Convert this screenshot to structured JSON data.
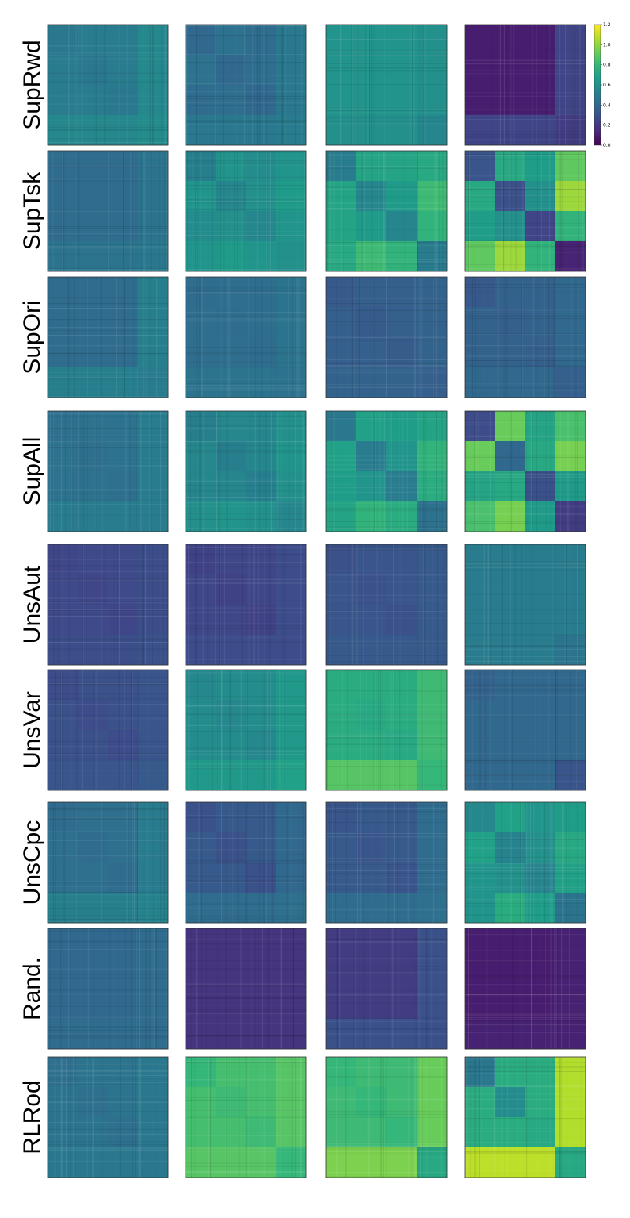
{
  "chart_data": {
    "type": "heatmap",
    "description_free": true,
    "rows": [
      "SupRwd",
      "SupTsk",
      "SupOri",
      "SupAll",
      "UnsAut",
      "UnsVar",
      "UnsCpc",
      "Rand.",
      "RLRod"
    ],
    "n_columns": 4,
    "block_count": 4,
    "colormap_stops": [
      "#440154",
      "#482878",
      "#3e4989",
      "#31688e",
      "#26828e",
      "#1f9e89",
      "#35b779",
      "#6ece58",
      "#b5de2b",
      "#fde725"
    ],
    "colorbar": {
      "vmin": 0.0,
      "vmax": 1.2,
      "ticks": [
        "0.0",
        "0.2",
        "0.4",
        "0.6",
        "0.8",
        "1.0",
        "1.2"
      ]
    },
    "matrices": [
      [
        [
          [
            0.48,
            0.5,
            0.5,
            0.56
          ],
          [
            0.5,
            0.48,
            0.5,
            0.56
          ],
          [
            0.5,
            0.5,
            0.48,
            0.56
          ],
          [
            0.56,
            0.56,
            0.56,
            0.58
          ]
        ],
        [
          [
            0.4,
            0.45,
            0.42,
            0.48
          ],
          [
            0.45,
            0.4,
            0.43,
            0.48
          ],
          [
            0.42,
            0.43,
            0.4,
            0.48
          ],
          [
            0.48,
            0.48,
            0.48,
            0.5
          ]
        ],
        [
          [
            0.62,
            0.62,
            0.62,
            0.6
          ],
          [
            0.62,
            0.62,
            0.62,
            0.6
          ],
          [
            0.62,
            0.62,
            0.62,
            0.6
          ],
          [
            0.6,
            0.6,
            0.6,
            0.55
          ]
        ],
        [
          [
            0.1,
            0.1,
            0.1,
            0.25
          ],
          [
            0.1,
            0.1,
            0.1,
            0.25
          ],
          [
            0.1,
            0.1,
            0.1,
            0.25
          ],
          [
            0.25,
            0.25,
            0.25,
            0.22
          ]
        ]
      ],
      [
        [
          [
            0.42,
            0.42,
            0.42,
            0.46
          ],
          [
            0.42,
            0.42,
            0.42,
            0.46
          ],
          [
            0.42,
            0.42,
            0.42,
            0.46
          ],
          [
            0.46,
            0.46,
            0.46,
            0.48
          ]
        ],
        [
          [
            0.52,
            0.62,
            0.58,
            0.62
          ],
          [
            0.62,
            0.55,
            0.6,
            0.65
          ],
          [
            0.58,
            0.6,
            0.55,
            0.62
          ],
          [
            0.62,
            0.65,
            0.62,
            0.6
          ]
        ],
        [
          [
            0.5,
            0.7,
            0.7,
            0.72
          ],
          [
            0.7,
            0.55,
            0.65,
            0.82
          ],
          [
            0.7,
            0.65,
            0.55,
            0.78
          ],
          [
            0.72,
            0.82,
            0.78,
            0.5
          ]
        ],
        [
          [
            0.32,
            0.72,
            0.66,
            0.9
          ],
          [
            0.72,
            0.3,
            0.6,
            1.02
          ],
          [
            0.66,
            0.6,
            0.25,
            0.78
          ],
          [
            0.9,
            1.02,
            0.78,
            0.12
          ]
        ]
      ],
      [
        [
          [
            0.42,
            0.42,
            0.42,
            0.52
          ],
          [
            0.42,
            0.42,
            0.42,
            0.52
          ],
          [
            0.42,
            0.42,
            0.42,
            0.52
          ],
          [
            0.52,
            0.52,
            0.52,
            0.5
          ]
        ],
        [
          [
            0.42,
            0.43,
            0.43,
            0.46
          ],
          [
            0.43,
            0.42,
            0.43,
            0.46
          ],
          [
            0.43,
            0.43,
            0.42,
            0.46
          ],
          [
            0.46,
            0.46,
            0.46,
            0.45
          ]
        ],
        [
          [
            0.34,
            0.36,
            0.36,
            0.38
          ],
          [
            0.36,
            0.35,
            0.36,
            0.38
          ],
          [
            0.36,
            0.36,
            0.35,
            0.38
          ],
          [
            0.38,
            0.38,
            0.38,
            0.36
          ]
        ],
        [
          [
            0.34,
            0.38,
            0.38,
            0.4
          ],
          [
            0.38,
            0.36,
            0.38,
            0.4
          ],
          [
            0.38,
            0.38,
            0.36,
            0.4
          ],
          [
            0.4,
            0.4,
            0.4,
            0.36
          ]
        ]
      ],
      [
        [
          [
            0.44,
            0.45,
            0.45,
            0.5
          ],
          [
            0.45,
            0.44,
            0.45,
            0.5
          ],
          [
            0.45,
            0.45,
            0.44,
            0.5
          ],
          [
            0.5,
            0.5,
            0.5,
            0.5
          ]
        ],
        [
          [
            0.52,
            0.56,
            0.55,
            0.6
          ],
          [
            0.56,
            0.52,
            0.55,
            0.62
          ],
          [
            0.55,
            0.55,
            0.52,
            0.6
          ],
          [
            0.6,
            0.62,
            0.6,
            0.55
          ]
        ],
        [
          [
            0.48,
            0.68,
            0.66,
            0.7
          ],
          [
            0.68,
            0.5,
            0.62,
            0.78
          ],
          [
            0.66,
            0.62,
            0.5,
            0.74
          ],
          [
            0.7,
            0.78,
            0.74,
            0.45
          ]
        ],
        [
          [
            0.28,
            0.92,
            0.7,
            0.85
          ],
          [
            0.92,
            0.4,
            0.72,
            0.95
          ],
          [
            0.7,
            0.72,
            0.3,
            0.65
          ],
          [
            0.85,
            0.95,
            0.65,
            0.22
          ]
        ]
      ],
      [
        [
          [
            0.26,
            0.27,
            0.27,
            0.29
          ],
          [
            0.27,
            0.26,
            0.27,
            0.29
          ],
          [
            0.27,
            0.27,
            0.26,
            0.29
          ],
          [
            0.29,
            0.29,
            0.29,
            0.3
          ]
        ],
        [
          [
            0.24,
            0.26,
            0.26,
            0.28
          ],
          [
            0.26,
            0.24,
            0.26,
            0.28
          ],
          [
            0.26,
            0.26,
            0.24,
            0.28
          ],
          [
            0.28,
            0.28,
            0.28,
            0.28
          ]
        ],
        [
          [
            0.3,
            0.32,
            0.32,
            0.34
          ],
          [
            0.32,
            0.3,
            0.32,
            0.34
          ],
          [
            0.32,
            0.32,
            0.3,
            0.34
          ],
          [
            0.34,
            0.34,
            0.34,
            0.34
          ]
        ],
        [
          [
            0.5,
            0.5,
            0.5,
            0.5
          ],
          [
            0.5,
            0.5,
            0.5,
            0.5
          ],
          [
            0.5,
            0.5,
            0.5,
            0.5
          ],
          [
            0.5,
            0.5,
            0.5,
            0.46
          ]
        ]
      ],
      [
        [
          [
            0.28,
            0.3,
            0.3,
            0.32
          ],
          [
            0.3,
            0.28,
            0.3,
            0.32
          ],
          [
            0.3,
            0.3,
            0.28,
            0.32
          ],
          [
            0.32,
            0.32,
            0.32,
            0.34
          ]
        ],
        [
          [
            0.56,
            0.58,
            0.58,
            0.64
          ],
          [
            0.58,
            0.56,
            0.58,
            0.64
          ],
          [
            0.58,
            0.58,
            0.56,
            0.64
          ],
          [
            0.64,
            0.64,
            0.64,
            0.68
          ]
        ],
        [
          [
            0.74,
            0.74,
            0.74,
            0.82
          ],
          [
            0.74,
            0.72,
            0.74,
            0.82
          ],
          [
            0.74,
            0.74,
            0.72,
            0.82
          ],
          [
            0.88,
            0.88,
            0.88,
            0.8
          ]
        ],
        [
          [
            0.38,
            0.4,
            0.4,
            0.4
          ],
          [
            0.4,
            0.4,
            0.4,
            0.4
          ],
          [
            0.4,
            0.4,
            0.4,
            0.4
          ],
          [
            0.4,
            0.4,
            0.4,
            0.32
          ]
        ]
      ],
      [
        [
          [
            0.42,
            0.44,
            0.44,
            0.5
          ],
          [
            0.44,
            0.42,
            0.44,
            0.5
          ],
          [
            0.44,
            0.44,
            0.42,
            0.5
          ],
          [
            0.52,
            0.52,
            0.52,
            0.54
          ]
        ],
        [
          [
            0.3,
            0.34,
            0.34,
            0.4
          ],
          [
            0.34,
            0.3,
            0.34,
            0.4
          ],
          [
            0.34,
            0.34,
            0.3,
            0.4
          ],
          [
            0.42,
            0.42,
            0.42,
            0.44
          ]
        ],
        [
          [
            0.32,
            0.34,
            0.34,
            0.42
          ],
          [
            0.34,
            0.32,
            0.34,
            0.42
          ],
          [
            0.34,
            0.34,
            0.32,
            0.42
          ],
          [
            0.42,
            0.42,
            0.42,
            0.44
          ]
        ],
        [
          [
            0.56,
            0.68,
            0.62,
            0.66
          ],
          [
            0.68,
            0.54,
            0.6,
            0.72
          ],
          [
            0.62,
            0.6,
            0.54,
            0.68
          ],
          [
            0.62,
            0.74,
            0.66,
            0.46
          ]
        ]
      ],
      [
        [
          [
            0.4,
            0.4,
            0.4,
            0.42
          ],
          [
            0.4,
            0.4,
            0.4,
            0.42
          ],
          [
            0.4,
            0.4,
            0.4,
            0.42
          ],
          [
            0.42,
            0.42,
            0.42,
            0.42
          ]
        ],
        [
          [
            0.18,
            0.18,
            0.18,
            0.18
          ],
          [
            0.18,
            0.18,
            0.18,
            0.18
          ],
          [
            0.18,
            0.18,
            0.18,
            0.18
          ],
          [
            0.18,
            0.18,
            0.18,
            0.18
          ]
        ],
        [
          [
            0.22,
            0.22,
            0.22,
            0.3
          ],
          [
            0.22,
            0.22,
            0.22,
            0.3
          ],
          [
            0.22,
            0.22,
            0.22,
            0.3
          ],
          [
            0.3,
            0.3,
            0.3,
            0.3
          ]
        ],
        [
          [
            0.1,
            0.1,
            0.1,
            0.11
          ],
          [
            0.1,
            0.1,
            0.1,
            0.11
          ],
          [
            0.1,
            0.1,
            0.1,
            0.11
          ],
          [
            0.11,
            0.11,
            0.11,
            0.11
          ]
        ]
      ],
      [
        [
          [
            0.44,
            0.46,
            0.46,
            0.48
          ],
          [
            0.46,
            0.44,
            0.46,
            0.48
          ],
          [
            0.46,
            0.46,
            0.44,
            0.48
          ],
          [
            0.48,
            0.48,
            0.48,
            0.48
          ]
        ],
        [
          [
            0.8,
            0.84,
            0.84,
            0.88
          ],
          [
            0.84,
            0.82,
            0.84,
            0.88
          ],
          [
            0.84,
            0.84,
            0.82,
            0.88
          ],
          [
            0.88,
            0.88,
            0.88,
            0.8
          ]
        ],
        [
          [
            0.8,
            0.82,
            0.82,
            0.92
          ],
          [
            0.82,
            0.8,
            0.82,
            0.92
          ],
          [
            0.82,
            0.82,
            0.8,
            0.92
          ],
          [
            0.96,
            0.96,
            0.96,
            0.72
          ]
        ],
        [
          [
            0.48,
            0.74,
            0.74,
            1.06
          ],
          [
            0.74,
            0.58,
            0.74,
            1.06
          ],
          [
            0.74,
            0.74,
            0.72,
            1.06
          ],
          [
            1.08,
            1.08,
            1.08,
            0.72
          ]
        ]
      ]
    ]
  }
}
